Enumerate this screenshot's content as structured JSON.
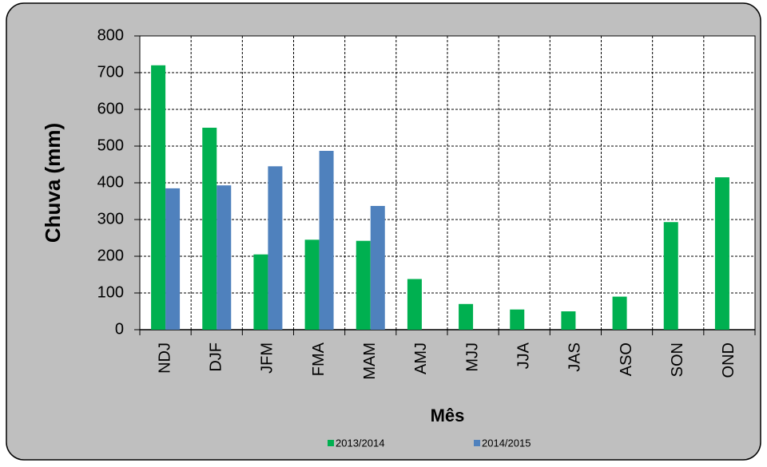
{
  "chart_data": {
    "type": "bar",
    "categories": [
      "NDJ",
      "DJF",
      "JFM",
      "FMA",
      "MAM",
      "AMJ",
      "MJJ",
      "JJA",
      "JAS",
      "ASO",
      "SON",
      "OND"
    ],
    "series": [
      {
        "name": "2013/2014",
        "color": "#00b050",
        "values": [
          720,
          550,
          205,
          245,
          242,
          138,
          70,
          55,
          50,
          90,
          293,
          415
        ]
      },
      {
        "name": "2014/2015",
        "color": "#4f81bd",
        "values": [
          385,
          393,
          445,
          487,
          337,
          null,
          null,
          null,
          null,
          null,
          null,
          null
        ]
      }
    ],
    "x_label": "Mês",
    "y_label": "Chuva (mm)",
    "ylim": [
      0,
      800
    ],
    "yticks": [
      0,
      100,
      200,
      300,
      400,
      500,
      600,
      700,
      800
    ],
    "grid": true,
    "legend": "bottom"
  }
}
